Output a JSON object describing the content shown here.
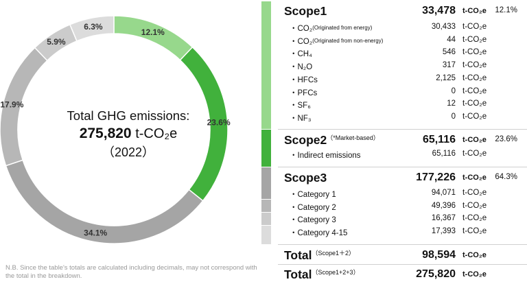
{
  "chart_data": {
    "type": "pie",
    "categories": [
      "Scope1",
      "Scope2",
      "Scope3 Category 1",
      "Scope3 Category 2",
      "Scope3 Category 3",
      "Scope3 Category 4-15"
    ],
    "values": [
      12.1,
      23.6,
      34.1,
      17.9,
      5.9,
      6.3
    ],
    "labels": [
      "12.1%",
      "23.6%",
      "34.1%",
      "17.9%",
      "5.9%",
      "6.3%"
    ],
    "colors": [
      "#97d88c",
      "#41b13c",
      "#a5a5a5",
      "#b7b7b7",
      "#cbcbcb",
      "#dcdcdc"
    ]
  },
  "center": {
    "line1": "Total GHG emissions:",
    "value": "275,820",
    "unit": "t-CO₂e",
    "year": "（2022）"
  },
  "note": "N.B. Since the table's totals are calculated including decimals, may not correspond with the total in the breakdown.",
  "table": {
    "unit": "t-CO₂e",
    "scope1": {
      "title": "Scope1",
      "value": "33,478",
      "percent": "12.1%",
      "rows": [
        {
          "label": "・CO₂",
          "note": " (Originated from energy)",
          "value": "30,433"
        },
        {
          "label": "・CO₂",
          "note": " (Originated from non-energy)",
          "value": "44"
        },
        {
          "label": "・CH₄",
          "note": "",
          "value": "546"
        },
        {
          "label": "・N₂O",
          "note": "",
          "value": "317"
        },
        {
          "label": "・HFCs",
          "note": "",
          "value": "2,125"
        },
        {
          "label": "・PFCs",
          "note": "",
          "value": "0"
        },
        {
          "label": "・SF₆",
          "note": "",
          "value": "12"
        },
        {
          "label": "・NF₃",
          "note": "",
          "value": "0"
        }
      ]
    },
    "scope2": {
      "title": "Scope2",
      "sub": "（*Market-based）",
      "value": "65,116",
      "percent": "23.6%",
      "rows": [
        {
          "label": "・Indirect emissions",
          "note": "",
          "value": "65,116"
        }
      ]
    },
    "scope3": {
      "title": "Scope3",
      "value": "177,226",
      "percent": "64.3%",
      "rows": [
        {
          "label": "・Category 1",
          "note": "",
          "value": "94,071"
        },
        {
          "label": "・Category 2",
          "note": "",
          "value": "49,396"
        },
        {
          "label": "・Category 3",
          "note": "",
          "value": "16,367"
        },
        {
          "label": "・Category 4-15",
          "note": "",
          "value": "17,393"
        }
      ]
    },
    "total12": {
      "title": "Total",
      "sub": "（Scope1＋2）",
      "value": "98,594"
    },
    "total123": {
      "title": "Total",
      "sub": "（Scope1+2+3）",
      "value": "275,820"
    }
  }
}
